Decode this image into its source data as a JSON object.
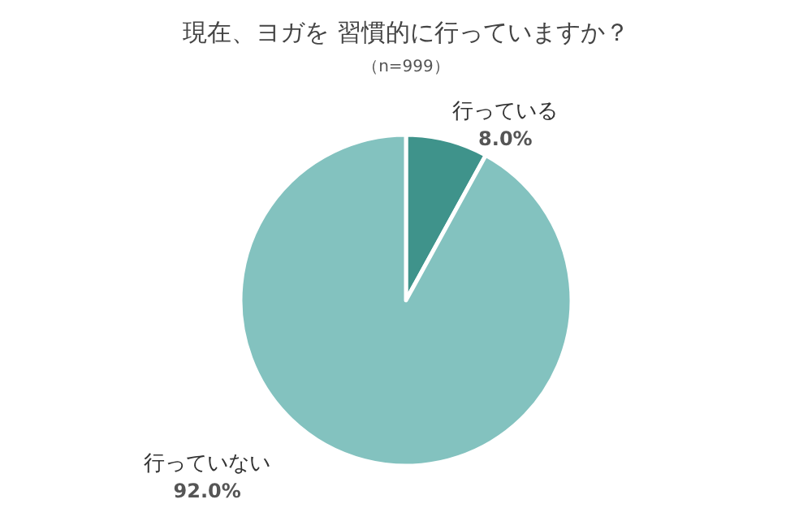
{
  "chart_data": {
    "type": "pie",
    "title": "現在、ヨガを 習慣的に行っていますか？",
    "subtitle": "（n=999）",
    "categories": [
      "行っている",
      "行っていない"
    ],
    "values": [
      8.0,
      92.0
    ],
    "value_labels": [
      "8.0%",
      "92.0%"
    ],
    "colors": [
      "#3f938b",
      "#83c2bf"
    ]
  }
}
